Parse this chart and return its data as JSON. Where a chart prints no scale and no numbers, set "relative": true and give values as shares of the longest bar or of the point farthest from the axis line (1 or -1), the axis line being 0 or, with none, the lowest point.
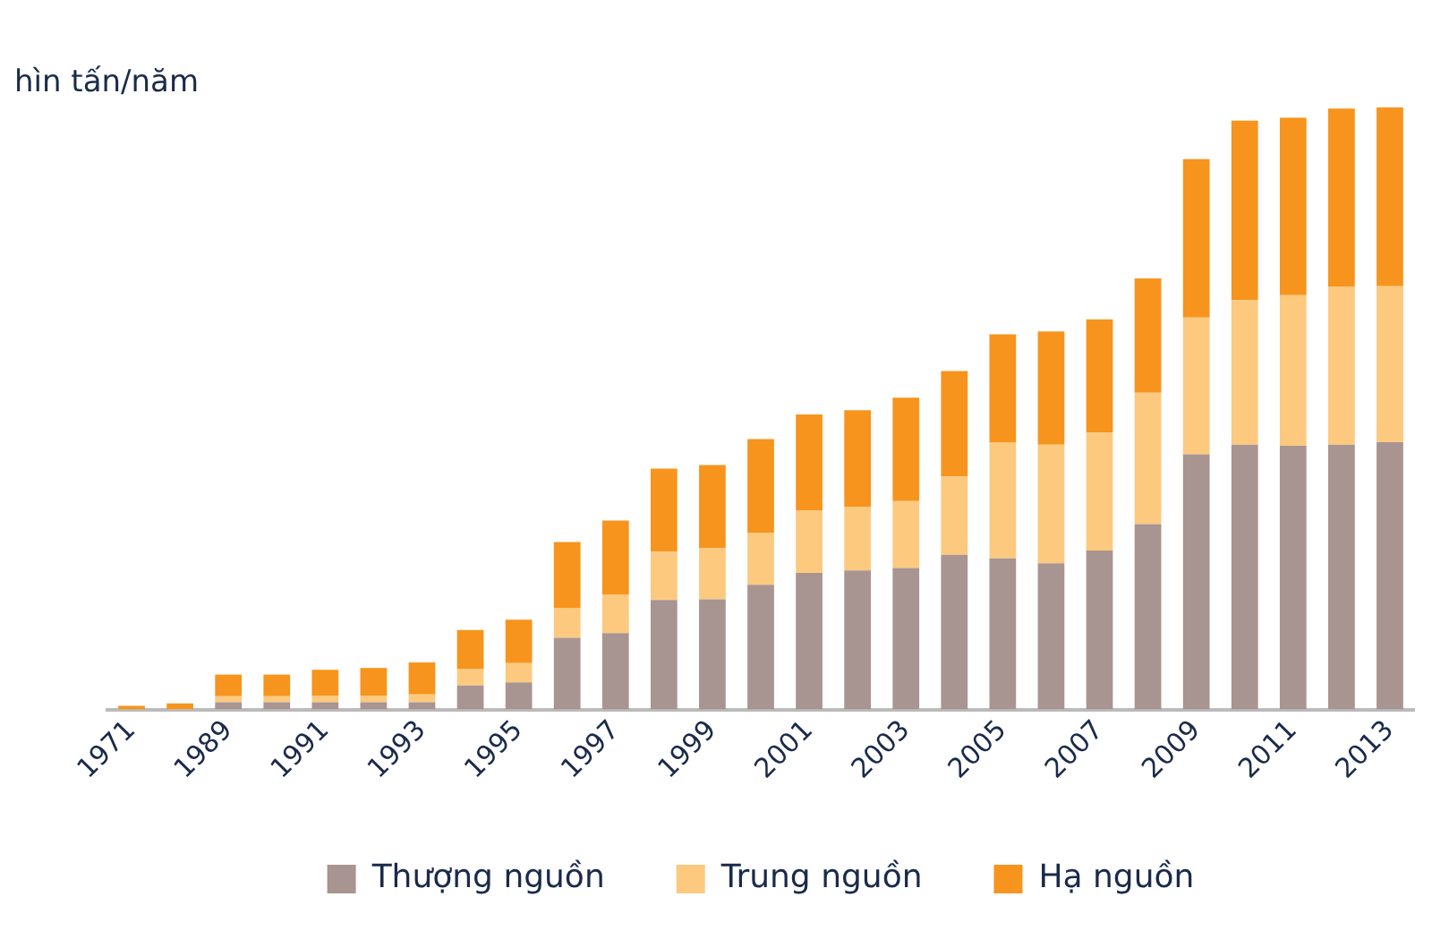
{
  "chart_data": {
    "type": "bar",
    "stacked": true,
    "relative": true,
    "ylabel": "hìn tấn/năm",
    "legend": "bottom",
    "grid": false,
    "categories": [
      "1971",
      null,
      "1989",
      null,
      "1991",
      null,
      "1993",
      null,
      "1995",
      null,
      "1997",
      null,
      "1999",
      null,
      "2001",
      null,
      "2003",
      null,
      "2005",
      null,
      "2007",
      null,
      "2009",
      null,
      "2011",
      null,
      "2013"
    ],
    "series": [
      {
        "name": "Thượng nguồn",
        "color": "#a89490",
        "values": [
          0,
          0,
          0.012,
          0.012,
          0.012,
          0.012,
          0.012,
          0.04,
          0.045,
          0.119,
          0.127,
          0.182,
          0.183,
          0.207,
          0.227,
          0.231,
          0.235,
          0.257,
          0.251,
          0.243,
          0.264,
          0.308,
          0.424,
          0.44,
          0.438,
          0.44,
          0.444
        ]
      },
      {
        "name": "Trung nguồn",
        "color": "#fcc97f",
        "values": [
          0,
          0,
          0.01,
          0.01,
          0.011,
          0.011,
          0.013,
          0.027,
          0.032,
          0.05,
          0.064,
          0.08,
          0.085,
          0.086,
          0.103,
          0.106,
          0.111,
          0.13,
          0.193,
          0.197,
          0.196,
          0.218,
          0.227,
          0.24,
          0.25,
          0.262,
          0.259
        ]
      },
      {
        "name": "Hạ nguồn",
        "color": "#f7941d",
        "values": [
          0.006,
          0.01,
          0.036,
          0.036,
          0.043,
          0.046,
          0.053,
          0.065,
          0.072,
          0.109,
          0.123,
          0.138,
          0.138,
          0.156,
          0.16,
          0.16,
          0.172,
          0.175,
          0.179,
          0.188,
          0.188,
          0.19,
          0.263,
          0.298,
          0.295,
          0.296,
          0.297
        ]
      }
    ]
  }
}
